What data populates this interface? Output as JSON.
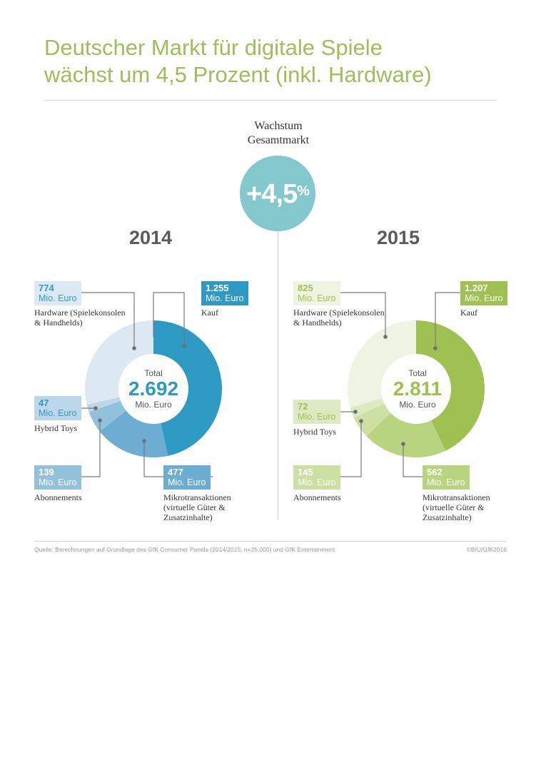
{
  "title_line1": "Deutscher Markt für digitale Spiele",
  "title_line2": "wächst um 4,5 Prozent (inkl. Hardware)",
  "growth": {
    "label_line1": "Wachstum",
    "label_line2": "Gesamtmarkt",
    "value": "+4,5",
    "unit": "%"
  },
  "unit": "Mio. Euro",
  "total_label": "Total",
  "source": "Quelle: Berechnungen auf Grundlage des GfK Consumer Panels (2014/2015; n=25.000) und GfK Entertainment",
  "copyright": "©BIU/GfK2016",
  "chart_data": [
    {
      "type": "pie",
      "year": "2014",
      "total": "2.692",
      "segments": [
        {
          "name": "Kauf",
          "value": 1255,
          "value_label": "1.255",
          "color": "#2e9ac3",
          "label_color": "#2e9ac3"
        },
        {
          "name": "Mikrotransaktionen (virtuelle Güter & Zusatzinhalte)",
          "value": 477,
          "value_label": "477",
          "color": "#6cadd1",
          "label_color": "#6cadd1"
        },
        {
          "name": "Abonnements",
          "value": 139,
          "value_label": "139",
          "color": "#92c1dc",
          "label_color": "#92c1dc"
        },
        {
          "name": "Hybrid Toys",
          "value": 47,
          "value_label": "47",
          "color": "#bcd7ea",
          "label_color": "#bcd7ea"
        },
        {
          "name": "Hardware (Spielekonsolen & Handhelds)",
          "value": 774,
          "value_label": "774",
          "color": "#dce9f3",
          "label_color": "#dce9f3"
        }
      ]
    },
    {
      "type": "pie",
      "year": "2015",
      "total": "2.811",
      "segments": [
        {
          "name": "Kauf",
          "value": 1207,
          "value_label": "1.207",
          "color": "#9fc151",
          "label_color": "#9fc151"
        },
        {
          "name": "Mikrotransaktionen (virtuelle Güter & Zusatzinhalte)",
          "value": 562,
          "value_label": "562",
          "color": "#b9d47f",
          "label_color": "#b9d47f"
        },
        {
          "name": "Abonnements",
          "value": 145,
          "value_label": "145",
          "color": "#cde0a4",
          "label_color": "#cde0a4"
        },
        {
          "name": "Hybrid Toys",
          "value": 72,
          "value_label": "72",
          "color": "#dce9c1",
          "label_color": "#dce9c1"
        },
        {
          "name": "Hardware (Spielekonsolen & Handhelds)",
          "value": 825,
          "value_label": "825",
          "color": "#eef4e1",
          "label_color": "#eef4e1"
        }
      ]
    }
  ]
}
